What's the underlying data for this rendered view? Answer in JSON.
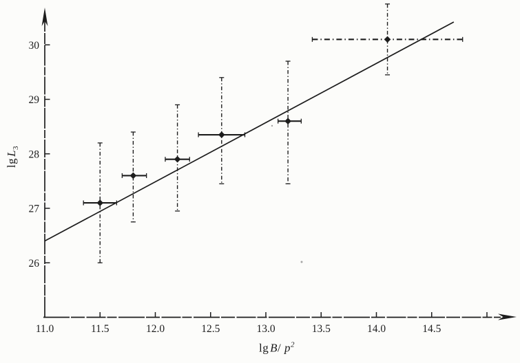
{
  "figure": {
    "background": "#fcfcfa",
    "ink": "#1d1d1d",
    "faded_ink": "#3a3a3a"
  },
  "chart_data": {
    "type": "scatter",
    "title": "",
    "xlabel": "lg B/p²",
    "ylabel": "lg L₃",
    "xlabel_parts": {
      "fn": "lg",
      "num": "B",
      "slash": "/ ",
      "den": "p",
      "exp": "2"
    },
    "ylabel_parts": {
      "fn": "lg",
      "var": "L",
      "sub": "3"
    },
    "xlim": [
      11.0,
      15.25
    ],
    "ylim": [
      25.0,
      30.8
    ],
    "grid": "off",
    "legend": "none",
    "x_axis": {
      "tick_values": [
        11.5,
        12.0,
        12.5,
        13.0,
        13.5,
        14.0,
        14.5,
        15.0
      ],
      "tick_labels": [
        {
          "value": 11.0,
          "label": "11.0"
        },
        {
          "value": 11.5,
          "label": "11.5"
        },
        {
          "value": 12.0,
          "label": "12.0"
        },
        {
          "value": 12.5,
          "label": "12.5"
        },
        {
          "value": 13.0,
          "label": "13.0"
        },
        {
          "value": 13.5,
          "label": "13.5"
        },
        {
          "value": 14.0,
          "label": "14.0"
        },
        {
          "value": 14.5,
          "label": "14.5"
        }
      ]
    },
    "y_axis": {
      "ticks": [
        {
          "value": 26,
          "label": "26"
        },
        {
          "value": 27,
          "label": "27"
        },
        {
          "value": 28,
          "label": "28"
        },
        {
          "value": 29,
          "label": "29"
        },
        {
          "value": 30,
          "label": "30"
        }
      ]
    },
    "points": [
      {
        "x": 11.5,
        "y": 27.1,
        "x_min": 11.35,
        "x_max": 11.65,
        "y_min": 26.0,
        "y_max": 28.2,
        "x_bar_style": "solid"
      },
      {
        "x": 11.8,
        "y": 27.6,
        "x_min": 11.7,
        "x_max": 11.92,
        "y_min": 26.75,
        "y_max": 28.4,
        "x_bar_style": "solid"
      },
      {
        "x": 12.2,
        "y": 27.9,
        "x_min": 12.09,
        "x_max": 12.31,
        "y_min": 26.95,
        "y_max": 28.9,
        "x_bar_style": "solid"
      },
      {
        "x": 12.6,
        "y": 28.35,
        "x_min": 12.39,
        "x_max": 12.81,
        "y_min": 27.45,
        "y_max": 29.4,
        "x_bar_style": "solid"
      },
      {
        "x": 13.2,
        "y": 28.6,
        "x_min": 13.11,
        "x_max": 13.32,
        "y_min": 27.45,
        "y_max": 29.7,
        "x_bar_style": "solid"
      },
      {
        "x": 14.1,
        "y": 30.1,
        "x_min": 13.42,
        "x_max": 14.78,
        "y_min": 29.45,
        "y_max": 30.75,
        "x_bar_style": "dashdot"
      }
    ],
    "fit_line": {
      "x1": 11.0,
      "y1": 26.4,
      "x2": 14.7,
      "y2": 30.42
    }
  }
}
